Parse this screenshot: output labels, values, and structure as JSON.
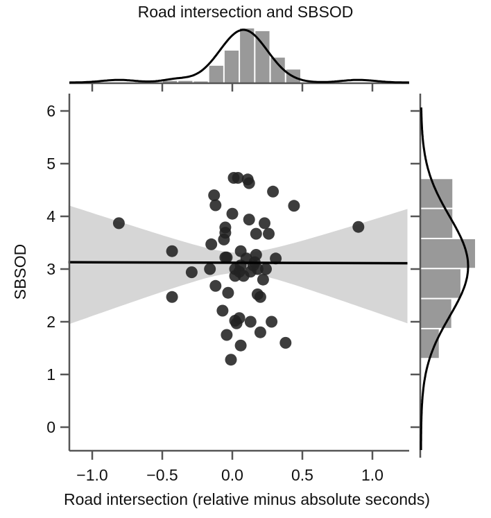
{
  "chart_data": {
    "type": "scatter",
    "title": "Road intersection and SBSOD",
    "xlabel": "Road intersection (relative minus absolute  seconds)",
    "ylabel": "SBSOD",
    "xlim": [
      -1.17,
      1.25
    ],
    "ylim": [
      -0.45,
      6.3
    ],
    "x_ticks": [
      -1.0,
      -0.5,
      0.0,
      0.5,
      1.0
    ],
    "x_tick_labels": [
      "−1.0",
      "−0.5",
      "0.0",
      "0.5",
      "1.0"
    ],
    "y_ticks": [
      0,
      1,
      2,
      3,
      4,
      5,
      6
    ],
    "y_tick_labels": [
      "0",
      "1",
      "2",
      "3",
      "4",
      "5",
      "6"
    ],
    "grid": false,
    "legend": null,
    "colors": {
      "points": "#222222",
      "regression_line": "#000000",
      "ci_band": "#d6d6d6",
      "histogram": "#999999",
      "kde": "#000000",
      "axis": "#555555"
    },
    "points": [
      {
        "x": -0.81,
        "y": 3.87
      },
      {
        "x": -0.43,
        "y": 3.34
      },
      {
        "x": -0.43,
        "y": 2.47
      },
      {
        "x": -0.29,
        "y": 2.94
      },
      {
        "x": -0.16,
        "y": 3.0
      },
      {
        "x": -0.15,
        "y": 3.47
      },
      {
        "x": -0.13,
        "y": 4.4
      },
      {
        "x": -0.12,
        "y": 4.21
      },
      {
        "x": -0.12,
        "y": 2.68
      },
      {
        "x": -0.07,
        "y": 2.21
      },
      {
        "x": -0.06,
        "y": 3.56
      },
      {
        "x": -0.05,
        "y": 3.69
      },
      {
        "x": -0.05,
        "y": 3.79
      },
      {
        "x": -0.05,
        "y": 3.22
      },
      {
        "x": -0.04,
        "y": 3.22
      },
      {
        "x": -0.04,
        "y": 1.75
      },
      {
        "x": -0.03,
        "y": 2.55
      },
      {
        "x": -0.01,
        "y": 1.28
      },
      {
        "x": 0.0,
        "y": 4.05
      },
      {
        "x": 0.01,
        "y": 4.73
      },
      {
        "x": 0.02,
        "y": 2.87
      },
      {
        "x": 0.02,
        "y": 3.0
      },
      {
        "x": 0.02,
        "y": 2.02
      },
      {
        "x": 0.03,
        "y": 1.97
      },
      {
        "x": 0.04,
        "y": 4.73
      },
      {
        "x": 0.05,
        "y": 2.95
      },
      {
        "x": 0.05,
        "y": 2.07
      },
      {
        "x": 0.06,
        "y": 3.34
      },
      {
        "x": 0.06,
        "y": 3.07
      },
      {
        "x": 0.06,
        "y": 1.55
      },
      {
        "x": 0.08,
        "y": 2.87
      },
      {
        "x": 0.1,
        "y": 3.2
      },
      {
        "x": 0.11,
        "y": 4.7
      },
      {
        "x": 0.12,
        "y": 4.63
      },
      {
        "x": 0.12,
        "y": 3.94
      },
      {
        "x": 0.13,
        "y": 2.95
      },
      {
        "x": 0.13,
        "y": 2.0
      },
      {
        "x": 0.15,
        "y": 3.07
      },
      {
        "x": 0.16,
        "y": 3.13
      },
      {
        "x": 0.17,
        "y": 3.67
      },
      {
        "x": 0.17,
        "y": 3.27
      },
      {
        "x": 0.18,
        "y": 2.52
      },
      {
        "x": 0.18,
        "y": 3.0
      },
      {
        "x": 0.2,
        "y": 2.47
      },
      {
        "x": 0.2,
        "y": 1.8
      },
      {
        "x": 0.22,
        "y": 2.8
      },
      {
        "x": 0.23,
        "y": 3.87
      },
      {
        "x": 0.24,
        "y": 3.0
      },
      {
        "x": 0.26,
        "y": 3.67
      },
      {
        "x": 0.29,
        "y": 4.47
      },
      {
        "x": 0.28,
        "y": 2.0
      },
      {
        "x": 0.31,
        "y": 3.2
      },
      {
        "x": 0.38,
        "y": 1.6
      },
      {
        "x": 0.44,
        "y": 4.2
      },
      {
        "x": 0.9,
        "y": 3.8
      }
    ],
    "regression": {
      "x_start": -1.17,
      "y_start": 3.13,
      "x_end": 1.25,
      "y_end": 3.11
    },
    "ci_band": {
      "left": {
        "x": -1.17,
        "upper": 4.21,
        "lower": 1.95
      },
      "mid": {
        "x": 0.05,
        "upper": 3.3,
        "lower": 2.92
      },
      "right": {
        "x": 1.25,
        "upper": 4.14,
        "lower": 1.97
      }
    },
    "x_marginal_histogram": {
      "bins": [
        {
          "x0": -0.5,
          "x1": -0.39,
          "height": 0.03
        },
        {
          "x0": -0.39,
          "x1": -0.28,
          "height": 0.03
        },
        {
          "x0": -0.28,
          "x1": -0.17,
          "height": 0.02
        },
        {
          "x0": -0.17,
          "x1": -0.06,
          "height": 0.31
        },
        {
          "x0": -0.06,
          "x1": 0.05,
          "height": 0.59
        },
        {
          "x0": 0.05,
          "x1": 0.16,
          "height": 1.0
        },
        {
          "x0": 0.16,
          "x1": 0.27,
          "height": 0.95
        },
        {
          "x0": 0.27,
          "x1": 0.38,
          "height": 0.46
        },
        {
          "x0": 0.38,
          "x1": 0.49,
          "height": 0.24
        }
      ],
      "kde_peak_x": 0.08
    },
    "y_marginal_histogram": {
      "bins": [
        {
          "y0": 1.3,
          "y1": 1.87,
          "width": 0.33
        },
        {
          "y0": 1.87,
          "y1": 2.44,
          "width": 0.56
        },
        {
          "y0": 2.44,
          "y1": 3.01,
          "width": 0.73
        },
        {
          "y0": 3.01,
          "y1": 3.58,
          "width": 1.0
        },
        {
          "y0": 3.58,
          "y1": 4.15,
          "width": 0.58
        },
        {
          "y0": 4.15,
          "y1": 4.72,
          "width": 0.58
        }
      ],
      "kde_peak_y": 3.05
    }
  }
}
